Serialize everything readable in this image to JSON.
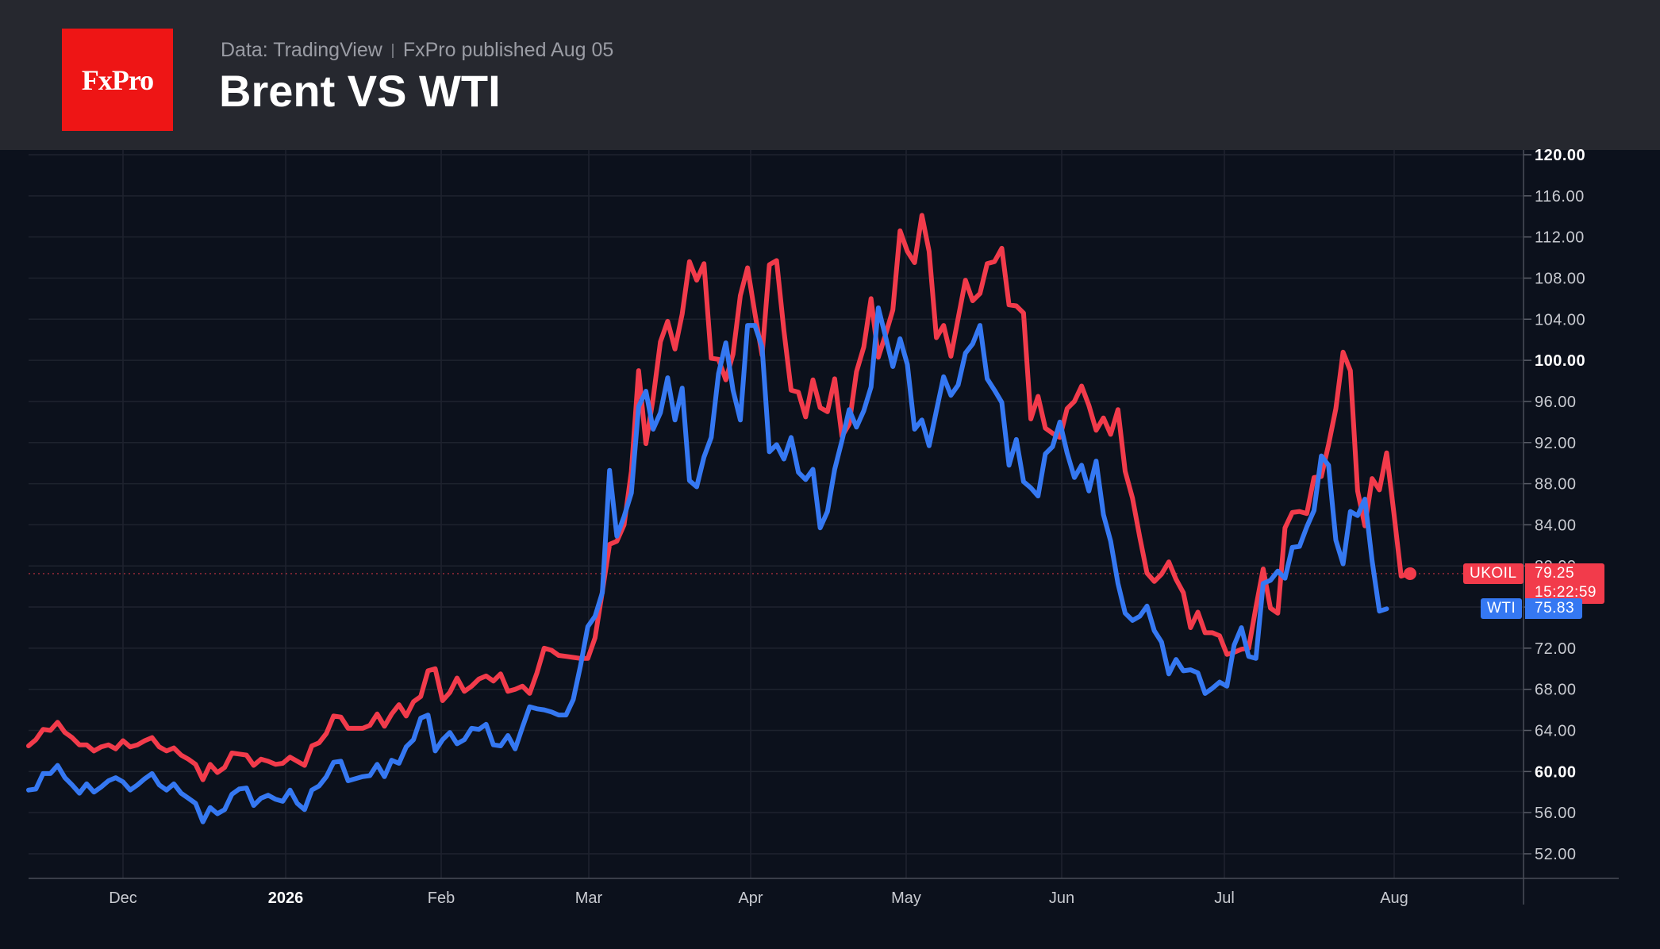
{
  "header": {
    "logo": "FxPro",
    "source": "Data: TradingView",
    "publisher": "FxPro published Aug 05",
    "title": "Brent VS WTI"
  },
  "colors": {
    "brent": "#f23b4b",
    "wti": "#3578f2",
    "background": "#0c111c",
    "header": "#26282f",
    "grid": "#1e232e",
    "axis_text": "#c9cbd1"
  },
  "chart_data": {
    "type": "line",
    "x_ticks": [
      "Dec",
      "2026",
      "Feb",
      "Mar",
      "Apr",
      "May",
      "Jun",
      "Jul",
      "Aug"
    ],
    "y_ticks": [
      "52.00",
      "56.00",
      "60.00",
      "64.00",
      "68.00",
      "72.00",
      "76.00",
      "80.00",
      "84.00",
      "88.00",
      "92.00",
      "96.00",
      "100.00",
      "104.00",
      "108.00",
      "112.00",
      "116.00",
      "120.00"
    ],
    "ylim": [
      50,
      120
    ],
    "grid": true,
    "series": [
      {
        "name": "UKOIL",
        "last_value": "79.25",
        "countdown": "15:22:59",
        "values": [
          62.5,
          63.1,
          64.1,
          64.0,
          64.8,
          63.8,
          63.3,
          62.6,
          62.6,
          62.0,
          62.4,
          62.6,
          62.2,
          63.0,
          62.4,
          62.6,
          63.0,
          63.3,
          62.4,
          62.0,
          62.3,
          61.6,
          61.2,
          60.7,
          59.2,
          60.7,
          59.9,
          60.4,
          61.8,
          61.7,
          61.6,
          60.6,
          61.2,
          61.0,
          60.7,
          60.8,
          61.4,
          61.0,
          60.6,
          62.5,
          62.8,
          63.7,
          65.4,
          65.3,
          64.2,
          64.2,
          64.2,
          64.5,
          65.6,
          64.4,
          65.6,
          66.5,
          65.4,
          66.8,
          67.3,
          69.8,
          70.0,
          66.9,
          67.7,
          69.1,
          67.8,
          68.3,
          69.0,
          69.3,
          68.8,
          69.5,
          67.8,
          68.0,
          68.3,
          67.6,
          69.6,
          72.0,
          71.8,
          71.3,
          71.2,
          71.1,
          71.0,
          71.0,
          73.0,
          77.5,
          82.1,
          82.4,
          84.0,
          89.2,
          99.0,
          91.9,
          96.3,
          101.8,
          103.8,
          101.1,
          104.5,
          109.6,
          107.8,
          109.4,
          100.2,
          100.1,
          98.1,
          100.6,
          106.3,
          109.0,
          104.6,
          100.5,
          109.3,
          109.7,
          102.9,
          97.1,
          96.9,
          94.5,
          98.1,
          95.4,
          95.0,
          98.2,
          92.6,
          93.8,
          98.9,
          101.3,
          106.0,
          100.3,
          102.5,
          104.9,
          112.6,
          110.6,
          109.5,
          114.1,
          110.6,
          102.2,
          103.4,
          100.4,
          104.1,
          107.8,
          105.8,
          106.5,
          109.4,
          109.6,
          110.9,
          105.4,
          105.3,
          104.6,
          94.3,
          96.5,
          93.4,
          92.9,
          92.5,
          95.3,
          96.0,
          97.5,
          95.6,
          93.2,
          94.4,
          92.8,
          95.2,
          89.2,
          86.6,
          82.8,
          79.3,
          78.5,
          79.2,
          80.4,
          78.7,
          77.4,
          74.0,
          75.5,
          73.5,
          73.5,
          73.2,
          71.4,
          71.6,
          71.9,
          72.0,
          76.0,
          79.7,
          75.9,
          75.4,
          83.7,
          85.2,
          85.3,
          85.1,
          88.6,
          88.7,
          91.8,
          95.3,
          100.8,
          99.0,
          87.3,
          83.9,
          88.5,
          87.4,
          91.0,
          85.1,
          79.0,
          79.25
        ]
      },
      {
        "name": "WTI",
        "last_value": "75.83",
        "values": [
          58.2,
          58.3,
          59.8,
          59.8,
          60.6,
          59.4,
          58.7,
          57.9,
          58.8,
          58.0,
          58.5,
          59.1,
          59.4,
          59.0,
          58.2,
          58.7,
          59.3,
          59.8,
          58.7,
          58.2,
          58.8,
          57.9,
          57.4,
          56.9,
          55.1,
          56.5,
          55.9,
          56.3,
          57.8,
          58.3,
          58.4,
          56.7,
          57.4,
          57.7,
          57.3,
          57.1,
          58.2,
          56.9,
          56.3,
          58.2,
          58.6,
          59.5,
          60.9,
          61.0,
          59.1,
          59.3,
          59.5,
          59.6,
          60.7,
          59.5,
          61.1,
          60.8,
          62.4,
          63.1,
          65.2,
          65.5,
          62.0,
          63.1,
          63.8,
          62.7,
          63.1,
          64.2,
          64.1,
          64.6,
          62.6,
          62.5,
          63.5,
          62.2,
          64.3,
          66.3,
          66.1,
          66.0,
          65.8,
          65.5,
          65.5,
          67.0,
          70.3,
          74.1,
          75.1,
          77.4,
          89.3,
          82.9,
          84.8,
          87.1,
          95.5,
          97.0,
          93.3,
          94.9,
          98.3,
          94.2,
          97.3,
          88.3,
          87.7,
          90.6,
          92.5,
          98.7,
          101.7,
          97.1,
          94.2,
          103.4,
          103.4,
          101.3,
          91.1,
          91.8,
          90.4,
          92.5,
          89.1,
          88.4,
          89.4,
          83.7,
          85.3,
          89.4,
          92.2,
          95.2,
          93.5,
          95.1,
          97.4,
          105.1,
          102.3,
          99.4,
          102.1,
          99.6,
          93.3,
          94.2,
          91.7,
          95.1,
          98.4,
          96.6,
          97.6,
          100.7,
          101.6,
          103.4,
          98.2,
          97.1,
          95.9,
          89.8,
          92.3,
          88.2,
          87.6,
          86.8,
          90.9,
          91.6,
          94.0,
          91.0,
          88.6,
          89.8,
          87.3,
          90.2,
          85.0,
          82.4,
          78.3,
          75.4,
          74.7,
          75.1,
          76.1,
          73.7,
          72.6,
          69.5,
          70.9,
          69.8,
          69.9,
          69.6,
          67.6,
          68.1,
          68.7,
          68.3,
          72.3,
          74.0,
          71.2,
          71.0,
          78.3,
          78.6,
          79.5,
          78.8,
          81.8,
          81.9,
          83.8,
          85.4,
          90.7,
          89.8,
          82.5,
          80.2,
          85.3,
          84.9,
          86.5,
          80.5,
          75.6,
          75.83
        ]
      }
    ]
  }
}
